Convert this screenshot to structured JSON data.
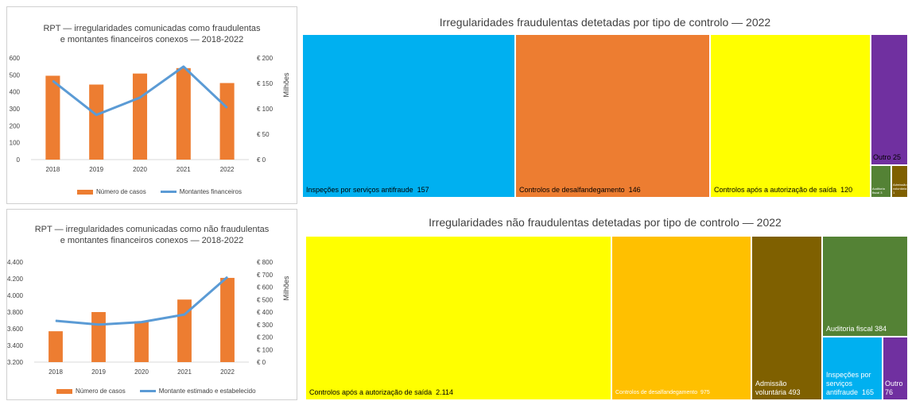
{
  "colors": {
    "bar": "#ED7D31",
    "line": "#5B9BD5",
    "grid": "#d9d9d9",
    "axis_text": "#404040"
  },
  "chart_data": [
    {
      "type": "bar",
      "title": "RPT — irregularidades comunicadas como fraudulentas\ne montantes financeiros conexos — 2018-2022",
      "categories": [
        "2018",
        "2019",
        "2020",
        "2021",
        "2022"
      ],
      "series": [
        {
          "name": "Número de casos",
          "type": "bar",
          "axis": "left",
          "values": [
            495,
            443,
            508,
            540,
            452
          ]
        },
        {
          "name": "Montantes financeiros",
          "type": "line",
          "axis": "right",
          "values": [
            155,
            88,
            122,
            183,
            102
          ]
        }
      ],
      "ylim": [
        0,
        600
      ],
      "yticks": [
        "0",
        "100",
        "200",
        "300",
        "400",
        "500",
        "600"
      ],
      "y2lim": [
        0,
        200
      ],
      "y2ticks": [
        "€ 0",
        "€ 50",
        "€ 100",
        "€ 150",
        "€ 200"
      ],
      "y2label": "Milhões",
      "legend": "bottom",
      "grid": false
    },
    {
      "type": "bar",
      "title": "RPT — irregularidades comunicadas como não fraudulentas\ne montantes financeiros conexos — 2018-2022",
      "categories": [
        "2018",
        "2019",
        "2020",
        "2021",
        "2022"
      ],
      "series": [
        {
          "name": "Número de casos",
          "type": "bar",
          "axis": "left",
          "values": [
            3570,
            3800,
            3690,
            3950,
            4210
          ]
        },
        {
          "name": "Montante estimado e estabelecido",
          "type": "line",
          "axis": "right",
          "values": [
            330,
            300,
            320,
            380,
            680
          ]
        }
      ],
      "ylim": [
        3200,
        4400
      ],
      "yticks": [
        "3.200",
        "3.400",
        "3.600",
        "3.800",
        "4.000",
        "4.200",
        "4.400"
      ],
      "y2lim": [
        0,
        800
      ],
      "y2ticks": [
        "€ 0",
        "€ 100",
        "€ 200",
        "€ 300",
        "€ 400",
        "€ 500",
        "€ 600",
        "€ 700",
        "€ 800"
      ],
      "y2label": "Milhões",
      "legend": "bottom",
      "grid": false
    },
    {
      "type": "treemap",
      "title": "Irregularidades fraudulentas detetadas por tipo de controlo — 2022",
      "items": [
        {
          "label": "Inspeções por serviços antifraude",
          "value": "157",
          "color": "#00B0F0"
        },
        {
          "label": "Controlos de desalfandegamento",
          "value": "146",
          "color": "#ED7D31"
        },
        {
          "label": "Controlos após a autorização de saída",
          "value": "120",
          "color": "#FFFF00"
        },
        {
          "label": "Outro",
          "value": "25",
          "color": "#7030A0"
        },
        {
          "label": "Auditoria fiscal",
          "value": "3",
          "color": "#548235"
        },
        {
          "label": "Admissão voluntária",
          "value": "1",
          "color": "#7F6000"
        }
      ]
    },
    {
      "type": "treemap",
      "title": "Irregularidades não fraudulentas detetadas por tipo de controlo — 2022",
      "items": [
        {
          "label": "Controlos após a autorização de saída",
          "value": "2.114",
          "color": "#FFFF00"
        },
        {
          "label": "Controlos de desalfandegamento",
          "value": "975",
          "color": "#FFC000"
        },
        {
          "label": "Admissão voluntária",
          "value": "493",
          "color": "#7F6000"
        },
        {
          "label": "Auditoria fiscal",
          "value": "384",
          "color": "#548235"
        },
        {
          "label": "Inspeções por serviços antifraude",
          "value": "165",
          "color": "#00B0F0"
        },
        {
          "label": "Outro",
          "value": "76",
          "color": "#7030A0"
        }
      ]
    }
  ]
}
